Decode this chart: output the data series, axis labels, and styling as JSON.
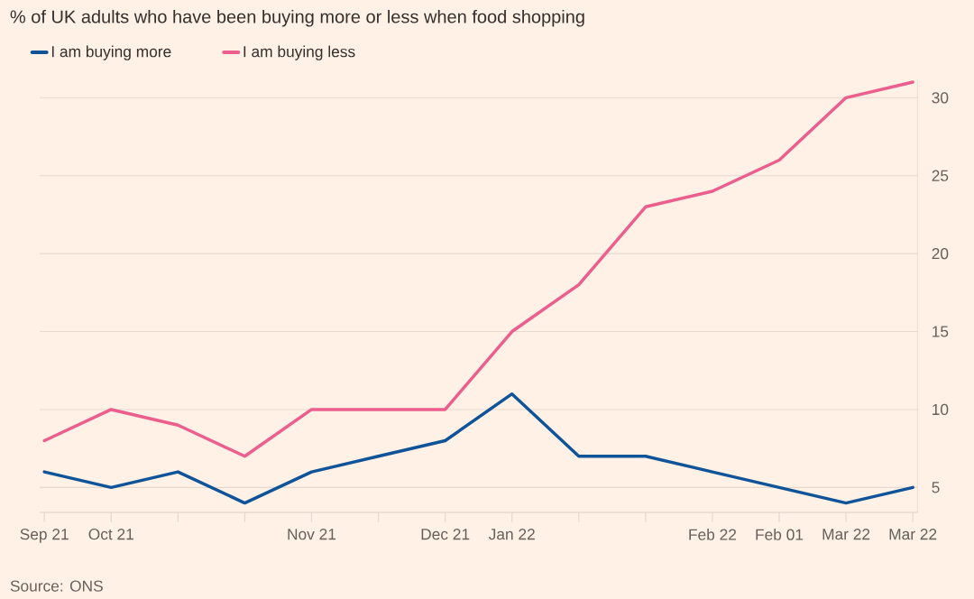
{
  "chart_data": {
    "type": "line",
    "title": "% of UK adults who have been buying more or less when food shopping",
    "categories": [
      "Sep 21",
      "Oct 21",
      null,
      null,
      "Nov 21",
      null,
      "Dec 21",
      "Jan 22",
      null,
      null,
      "Feb 22",
      "Feb 01",
      "Mar 22",
      "Mar 22"
    ],
    "series": [
      {
        "name": "I am buying more",
        "color": "#0f5499",
        "values": [
          6,
          5,
          6,
          4,
          6,
          7,
          8,
          11,
          7,
          7,
          6,
          5,
          4,
          5
        ]
      },
      {
        "name": "I am buying less",
        "color": "#eb5e8d",
        "values": [
          8,
          10,
          9,
          7,
          10,
          10,
          10,
          15,
          18,
          23,
          24,
          26,
          30,
          31
        ]
      }
    ],
    "ylim": [
      3.4,
      31.2
    ],
    "yticks": [
      5,
      10,
      15,
      20,
      25,
      30
    ],
    "grid": "y",
    "legend": "top left",
    "marker": "none",
    "line_style": "solid",
    "annotations": [
      "Source: ONS"
    ]
  }
}
